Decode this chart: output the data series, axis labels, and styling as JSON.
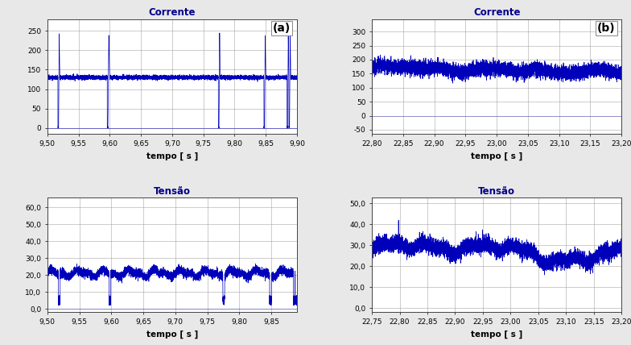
{
  "fig_width": 7.84,
  "fig_height": 4.28,
  "fig_dpi": 100,
  "bg_color": "#e8e8e8",
  "plot_bg_color": "#ffffff",
  "line_color": "#0000bb",
  "grid_color": "#999999",
  "title_color": "#00008B",
  "panel_a_current": {
    "title": "Corrente",
    "label": "(a)",
    "xlabel": "tempo [ s ]",
    "xlim": [
      9.5,
      9.9
    ],
    "ylim": [
      -15,
      280
    ],
    "yticks": [
      0,
      50,
      100,
      150,
      200,
      250
    ],
    "xticks": [
      9.5,
      9.55,
      9.6,
      9.65,
      9.7,
      9.75,
      9.8,
      9.85,
      9.9
    ]
  },
  "panel_b_current": {
    "title": "Corrente",
    "label": "(b)",
    "xlabel": "tempo [ s ]",
    "xlim": [
      22.8,
      23.2
    ],
    "ylim": [
      -65,
      345
    ],
    "yticks": [
      -50,
      0,
      50,
      100,
      150,
      200,
      250,
      300
    ],
    "xticks": [
      22.8,
      22.85,
      22.9,
      22.95,
      23.0,
      23.05,
      23.1,
      23.15,
      23.2
    ]
  },
  "panel_a_voltage": {
    "title": "Tensão",
    "xlabel": "tempo [ s ]",
    "xlim": [
      9.5,
      9.89
    ],
    "ylim": [
      -2,
      66
    ],
    "yticks": [
      0.0,
      10.0,
      20.0,
      30.0,
      40.0,
      50.0,
      60.0
    ],
    "xticks": [
      9.5,
      9.55,
      9.6,
      9.65,
      9.7,
      9.75,
      9.8,
      9.85
    ]
  },
  "panel_b_voltage": {
    "title": "Tensão",
    "xlabel": "tempo [ s ]",
    "xlim": [
      22.75,
      23.2
    ],
    "ylim": [
      -2,
      53
    ],
    "yticks": [
      0.0,
      10.0,
      20.0,
      30.0,
      40.0,
      50.0
    ],
    "xticks": [
      22.75,
      22.8,
      22.85,
      22.9,
      22.95,
      23.0,
      23.05,
      23.1,
      23.15,
      23.2
    ]
  }
}
